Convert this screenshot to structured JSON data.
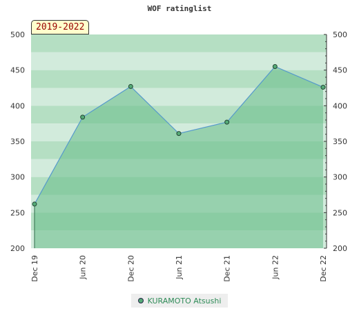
{
  "chart_data": {
    "type": "area",
    "title": "WOF ratinglist",
    "period": "2019-2022",
    "x": [
      "Dec 19",
      "Jun 20",
      "Dec 20",
      "Jun 21",
      "Dec 21",
      "Jun 22",
      "Dec 22"
    ],
    "series": [
      {
        "name": "KURAMOTO Atsushi",
        "values": [
          262,
          384,
          427,
          361,
          377,
          455,
          426
        ]
      }
    ],
    "yticks": [
      200,
      250,
      300,
      350,
      400,
      450,
      500
    ],
    "ylim": [
      200,
      500
    ],
    "grid": true,
    "legend": "bottom-center",
    "colors": {
      "line": "#5599cc",
      "fill": "#66bb88",
      "marker": "#55aa77",
      "band_dark": "#b5dfc3",
      "band_light": "#d2ebdc",
      "legend_text": "#2e8b57"
    }
  }
}
